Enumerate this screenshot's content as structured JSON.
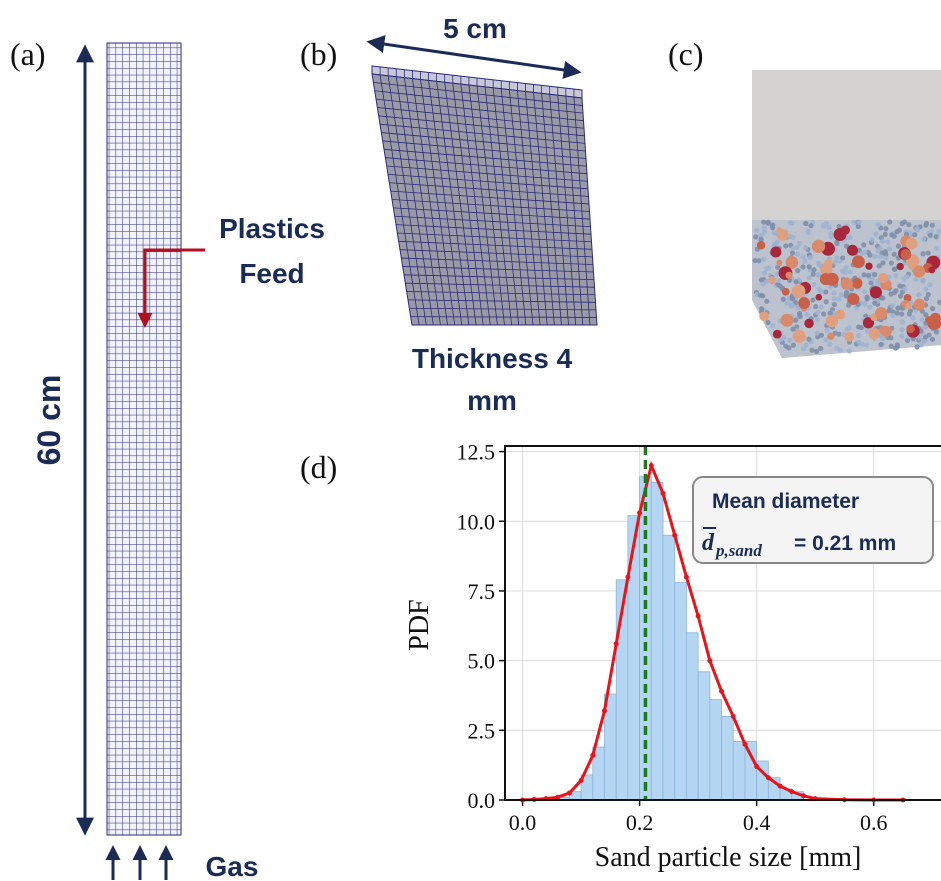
{
  "panel_a": {
    "label": "(a)",
    "height_label": "60 cm",
    "feed_label": [
      "Plastics",
      "Feed"
    ],
    "gas_label": "Gas"
  },
  "panel_b": {
    "label": "(b)",
    "width_label": "5 cm",
    "thickness_label": [
      "Thickness 4",
      "mm"
    ]
  },
  "panel_c": {
    "label": "(c)"
  },
  "panel_d": {
    "label": "(d)"
  },
  "chart_data": {
    "type": "histogram",
    "xlabel": "Sand particle size [mm]",
    "ylabel": "PDF",
    "bins": [
      0.06,
      0.08,
      0.1,
      0.12,
      0.14,
      0.16,
      0.18,
      0.2,
      0.22,
      0.24,
      0.26,
      0.28,
      0.3,
      0.32,
      0.34,
      0.36,
      0.38,
      0.4,
      0.42,
      0.44,
      0.46,
      0.48
    ],
    "values": [
      0.1,
      0.3,
      0.9,
      1.9,
      3.8,
      7.9,
      10.2,
      11.6,
      11.4,
      9.5,
      7.8,
      6.0,
      4.6,
      3.6,
      3.0,
      2.1,
      2.1,
      1.4,
      0.8,
      0.4,
      0.3
    ],
    "color": "#b4d6f2",
    "curve": {
      "x": [
        0.0,
        0.02,
        0.04,
        0.06,
        0.08,
        0.1,
        0.12,
        0.14,
        0.16,
        0.18,
        0.2,
        0.22,
        0.24,
        0.26,
        0.28,
        0.3,
        0.32,
        0.34,
        0.36,
        0.38,
        0.4,
        0.42,
        0.44,
        0.46,
        0.48,
        0.5,
        0.55,
        0.6,
        0.65
      ],
      "values": [
        0,
        0.02,
        0.05,
        0.1,
        0.25,
        0.7,
        1.6,
        3.2,
        5.6,
        8.0,
        10.3,
        12.0,
        11.0,
        9.5,
        8.0,
        6.6,
        5.0,
        3.9,
        3.0,
        2.0,
        1.2,
        0.8,
        0.5,
        0.3,
        0.15,
        0.05,
        0.01,
        0,
        0
      ],
      "color": "#e8141b"
    },
    "mean": 0.21,
    "mean_color": "#1b7a1b",
    "annotation": {
      "title": "Mean diameter",
      "symbol": "d",
      "subscript": "p,sand",
      "text": "= 0.21 mm"
    },
    "xlim": [
      -0.03,
      0.715
    ],
    "ylim": [
      0,
      12.7
    ],
    "xticks": [
      {
        "value": 0,
        "label": "0.0"
      },
      0.2,
      0.4,
      0.6
    ],
    "yticks": [
      {
        "value": 0,
        "label": "0.0"
      },
      2.5,
      {
        "value": 5,
        "label": "5.0"
      },
      7.5,
      {
        "value": 10,
        "label": "10.0"
      },
      12.5
    ],
    "grid": true
  }
}
